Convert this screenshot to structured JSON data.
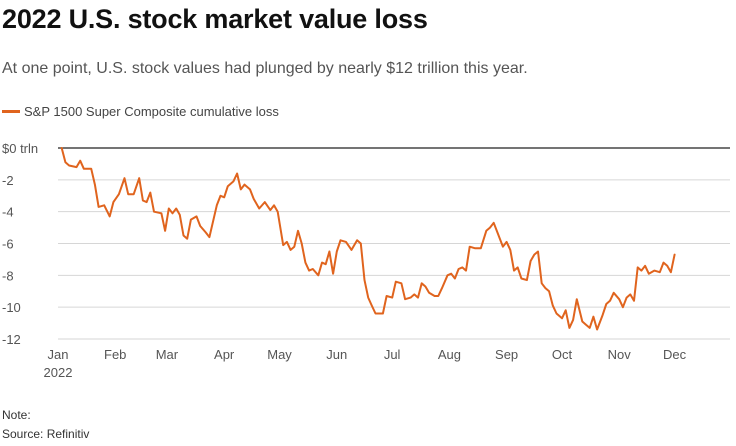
{
  "title": "2022 U.S. stock market value loss",
  "subtitle": "At one point, U.S. stock values had plunged by nearly $12 trillion this year.",
  "note": "Note:",
  "source": "Source: Refinitiv",
  "colors": {
    "series": "#e0641e",
    "grid": "#d6d6d6",
    "zero_line": "#222222",
    "axis_text": "#555555"
  },
  "chart_data": {
    "type": "line",
    "title": "2022 U.S. stock market value loss",
    "xlabel": "",
    "ylabel": "",
    "ylim": [
      -12,
      0
    ],
    "y_ticks": [
      0,
      -2,
      -4,
      -6,
      -8,
      -10,
      -12
    ],
    "y_tick_labels": [
      "$0 trln",
      "-2",
      "-4",
      "-6",
      "-8",
      "-10",
      "-12"
    ],
    "x_tick_labels": [
      "Jan",
      "Feb",
      "Mar",
      "Apr",
      "May",
      "Jun",
      "Jul",
      "Aug",
      "Sep",
      "Oct",
      "Nov",
      "Dec"
    ],
    "x_year_label": "2022",
    "grid": "horizontal",
    "legend_position": "top-left",
    "series": [
      {
        "name": "S&P 1500 Super Composite cumulative loss",
        "points": [
          [
            "2022-01-03",
            0.0
          ],
          [
            "2022-01-05",
            -0.9
          ],
          [
            "2022-01-07",
            -1.1
          ],
          [
            "2022-01-11",
            -1.2
          ],
          [
            "2022-01-13",
            -0.8
          ],
          [
            "2022-01-15",
            -1.3
          ],
          [
            "2022-01-19",
            -1.3
          ],
          [
            "2022-01-21",
            -2.3
          ],
          [
            "2022-01-23",
            -3.7
          ],
          [
            "2022-01-26",
            -3.6
          ],
          [
            "2022-01-29",
            -4.3
          ],
          [
            "2022-01-31",
            -3.4
          ],
          [
            "2022-02-03",
            -2.9
          ],
          [
            "2022-02-06",
            -1.9
          ],
          [
            "2022-02-08",
            -2.9
          ],
          [
            "2022-02-11",
            -2.9
          ],
          [
            "2022-02-14",
            -1.9
          ],
          [
            "2022-02-16",
            -3.3
          ],
          [
            "2022-02-18",
            -3.4
          ],
          [
            "2022-02-20",
            -2.8
          ],
          [
            "2022-02-22",
            -4.0
          ],
          [
            "2022-02-26",
            -4.1
          ],
          [
            "2022-02-28",
            -5.2
          ],
          [
            "2022-03-02",
            -3.8
          ],
          [
            "2022-03-04",
            -4.1
          ],
          [
            "2022-03-06",
            -3.8
          ],
          [
            "2022-03-08",
            -4.2
          ],
          [
            "2022-03-10",
            -5.5
          ],
          [
            "2022-03-12",
            -5.7
          ],
          [
            "2022-03-14",
            -4.5
          ],
          [
            "2022-03-17",
            -4.3
          ],
          [
            "2022-03-19",
            -4.9
          ],
          [
            "2022-03-22",
            -5.3
          ],
          [
            "2022-03-24",
            -5.6
          ],
          [
            "2022-03-28",
            -3.6
          ],
          [
            "2022-03-30",
            -3.0
          ],
          [
            "2022-04-01",
            -3.1
          ],
          [
            "2022-04-03",
            -2.4
          ],
          [
            "2022-04-06",
            -2.1
          ],
          [
            "2022-04-08",
            -1.6
          ],
          [
            "2022-04-10",
            -2.6
          ],
          [
            "2022-04-12",
            -2.3
          ],
          [
            "2022-04-15",
            -2.6
          ],
          [
            "2022-04-17",
            -3.2
          ],
          [
            "2022-04-20",
            -3.8
          ],
          [
            "2022-04-23",
            -3.4
          ],
          [
            "2022-04-26",
            -3.9
          ],
          [
            "2022-04-28",
            -3.6
          ],
          [
            "2022-04-30",
            -4.0
          ],
          [
            "2022-05-03",
            -6.1
          ],
          [
            "2022-05-05",
            -5.9
          ],
          [
            "2022-05-07",
            -6.4
          ],
          [
            "2022-05-09",
            -6.2
          ],
          [
            "2022-05-11",
            -5.2
          ],
          [
            "2022-05-13",
            -6.0
          ],
          [
            "2022-05-15",
            -7.2
          ],
          [
            "2022-05-17",
            -7.7
          ],
          [
            "2022-05-19",
            -7.6
          ],
          [
            "2022-05-22",
            -8.0
          ],
          [
            "2022-05-24",
            -7.2
          ],
          [
            "2022-05-26",
            -7.3
          ],
          [
            "2022-05-28",
            -6.5
          ],
          [
            "2022-05-30",
            -7.9
          ],
          [
            "2022-06-01",
            -6.5
          ],
          [
            "2022-06-03",
            -5.8
          ],
          [
            "2022-06-06",
            -5.9
          ],
          [
            "2022-06-09",
            -6.4
          ],
          [
            "2022-06-12",
            -5.8
          ],
          [
            "2022-06-14",
            -6.0
          ],
          [
            "2022-06-16",
            -8.3
          ],
          [
            "2022-06-18",
            -9.4
          ],
          [
            "2022-06-20",
            -9.9
          ],
          [
            "2022-06-22",
            -10.4
          ],
          [
            "2022-06-26",
            -10.4
          ],
          [
            "2022-06-28",
            -9.3
          ],
          [
            "2022-07-01",
            -9.4
          ],
          [
            "2022-07-03",
            -8.4
          ],
          [
            "2022-07-06",
            -8.5
          ],
          [
            "2022-07-08",
            -9.5
          ],
          [
            "2022-07-11",
            -9.4
          ],
          [
            "2022-07-13",
            -9.2
          ],
          [
            "2022-07-15",
            -9.4
          ],
          [
            "2022-07-17",
            -8.5
          ],
          [
            "2022-07-19",
            -8.7
          ],
          [
            "2022-07-21",
            -9.1
          ],
          [
            "2022-07-24",
            -9.3
          ],
          [
            "2022-07-26",
            -9.3
          ],
          [
            "2022-07-28",
            -8.8
          ],
          [
            "2022-07-31",
            -8.0
          ],
          [
            "2022-08-02",
            -7.9
          ],
          [
            "2022-08-04",
            -8.2
          ],
          [
            "2022-08-06",
            -7.6
          ],
          [
            "2022-08-08",
            -7.5
          ],
          [
            "2022-08-10",
            -7.7
          ],
          [
            "2022-08-12",
            -6.2
          ],
          [
            "2022-08-15",
            -6.3
          ],
          [
            "2022-08-18",
            -6.3
          ],
          [
            "2022-08-21",
            -5.2
          ],
          [
            "2022-08-23",
            -5.0
          ],
          [
            "2022-08-25",
            -4.7
          ],
          [
            "2022-08-27",
            -5.3
          ],
          [
            "2022-08-30",
            -6.2
          ],
          [
            "2022-09-01",
            -5.9
          ],
          [
            "2022-09-03",
            -6.4
          ],
          [
            "2022-09-05",
            -7.7
          ],
          [
            "2022-09-07",
            -7.5
          ],
          [
            "2022-09-09",
            -8.2
          ],
          [
            "2022-09-12",
            -8.3
          ],
          [
            "2022-09-14",
            -7.1
          ],
          [
            "2022-09-16",
            -6.7
          ],
          [
            "2022-09-18",
            -6.5
          ],
          [
            "2022-09-20",
            -8.5
          ],
          [
            "2022-09-22",
            -8.8
          ],
          [
            "2022-09-24",
            -9.0
          ],
          [
            "2022-09-26",
            -9.9
          ],
          [
            "2022-09-28",
            -10.4
          ],
          [
            "2022-10-01",
            -10.7
          ],
          [
            "2022-10-03",
            -10.2
          ],
          [
            "2022-10-05",
            -11.3
          ],
          [
            "2022-10-07",
            -10.8
          ],
          [
            "2022-10-09",
            -9.5
          ],
          [
            "2022-10-12",
            -10.9
          ],
          [
            "2022-10-14",
            -11.1
          ],
          [
            "2022-10-16",
            -11.3
          ],
          [
            "2022-10-18",
            -10.6
          ],
          [
            "2022-10-20",
            -11.4
          ],
          [
            "2022-10-23",
            -10.5
          ],
          [
            "2022-10-25",
            -9.8
          ],
          [
            "2022-10-27",
            -9.6
          ],
          [
            "2022-10-29",
            -9.1
          ],
          [
            "2022-11-01",
            -9.5
          ],
          [
            "2022-11-03",
            -10.0
          ],
          [
            "2022-11-05",
            -9.4
          ],
          [
            "2022-11-07",
            -9.2
          ],
          [
            "2022-11-09",
            -9.6
          ],
          [
            "2022-11-11",
            -7.5
          ],
          [
            "2022-11-13",
            -7.7
          ],
          [
            "2022-11-15",
            -7.4
          ],
          [
            "2022-11-17",
            -7.9
          ],
          [
            "2022-11-20",
            -7.7
          ],
          [
            "2022-11-23",
            -7.8
          ],
          [
            "2022-11-25",
            -7.2
          ],
          [
            "2022-11-27",
            -7.4
          ],
          [
            "2022-11-29",
            -7.8
          ],
          [
            "2022-12-01",
            -6.7
          ]
        ]
      }
    ]
  }
}
